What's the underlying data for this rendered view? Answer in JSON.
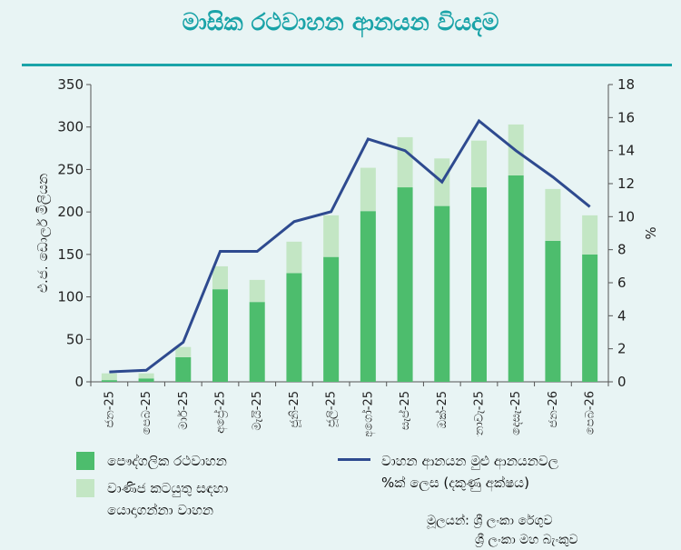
{
  "title": "මාසික රථවාහන ආනයන වියදම",
  "chart_data": {
    "type": "bar+line",
    "categories": [
      "ජන-25",
      "පෙබ-25",
      "මාර්-25",
      "අප්‍රේ-25",
      "මැයි-25",
      "ජූනි-25",
      "ජූලි-25",
      "අගෝ-25",
      "සැප්-25",
      "ඔක්-25",
      "නොවැ-25",
      "දෙසැ-25",
      "ජන-26",
      "පෙබ-26"
    ],
    "series": [
      {
        "name": "පෞද්ගලික රථවාහන",
        "type": "bar",
        "axis": "left",
        "color": "#4dbd6d",
        "values": [
          2,
          4,
          29,
          109,
          94,
          128,
          147,
          201,
          229,
          207,
          229,
          243,
          166,
          150
        ]
      },
      {
        "name": "වාණිජ කටයුතු සඳහා යොදාගන්නා වාහන",
        "type": "bar",
        "axis": "left",
        "stacked": true,
        "color": "#c3e6c4",
        "values": [
          8,
          6,
          12,
          27,
          26,
          37,
          49,
          51,
          59,
          56,
          55,
          60,
          61,
          46
        ]
      },
      {
        "name": "වාහන ආනයන මුළු ආනයනවල %ක් ලෙස (දකුණු අක්ෂය)",
        "type": "line",
        "axis": "right",
        "color": "#2e4a8f",
        "values": [
          0.6,
          0.7,
          2.4,
          7.9,
          7.9,
          9.7,
          10.3,
          14.7,
          14.0,
          12.1,
          15.8,
          14.0,
          12.4,
          10.6
        ]
      }
    ],
    "left_axis": {
      "label": "එ.ජ. ඩොලර් මිලියන",
      "ylim": [
        0,
        350
      ],
      "ticks": [
        "0",
        "50",
        "100",
        "150",
        "200",
        "250",
        "300",
        "350"
      ]
    },
    "right_axis": {
      "label": "%",
      "ylim": [
        0,
        18
      ],
      "ticks": [
        "0",
        "2",
        "4",
        "6",
        "8",
        "10",
        "12",
        "14",
        "16",
        "18"
      ]
    }
  },
  "legend": {
    "private_label": "පෞද්ගලික රථවාහන",
    "commercial_line1": "වාණිජ කටයුතු සඳහා",
    "commercial_line2": "යොදාගන්නා වාහන",
    "line_label1": "වාහන ආනයන මුළු ආනයනවල",
    "line_label2": "%ක් ලෙස (දකුණු අක්ෂය)"
  },
  "source": {
    "line1": "මූලයන්: ශ්‍රී ලංකා රේගුව",
    "line2": "ශ්‍රී ලංකා මහ බැංකුව"
  },
  "colors": {
    "accent": "#1aa3a8",
    "private": "#4dbd6d",
    "commercial": "#c3e6c4",
    "line": "#2e4a8f"
  }
}
